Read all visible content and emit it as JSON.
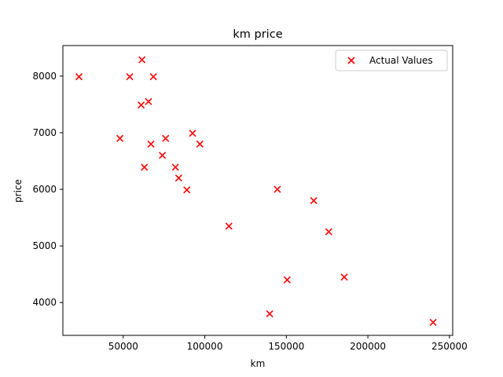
{
  "chart_data": {
    "type": "scatter",
    "title": "km price",
    "xlabel": "km",
    "ylabel": "price",
    "xlim": [
      13000,
      252000
    ],
    "ylim": [
      3420,
      8540
    ],
    "xticks": [
      50000,
      100000,
      150000,
      200000,
      250000
    ],
    "yticks": [
      4000,
      5000,
      6000,
      7000,
      8000
    ],
    "marker": "x",
    "color": "#ff0000",
    "grid": false,
    "legend_position": "top-right",
    "series": [
      {
        "name": "Actual Values",
        "points": [
          {
            "x": 240000,
            "y": 3650
          },
          {
            "x": 139800,
            "y": 3800
          },
          {
            "x": 150500,
            "y": 4400
          },
          {
            "x": 185500,
            "y": 4450
          },
          {
            "x": 176000,
            "y": 5250
          },
          {
            "x": 114800,
            "y": 5350
          },
          {
            "x": 166800,
            "y": 5800
          },
          {
            "x": 144500,
            "y": 6000
          },
          {
            "x": 89000,
            "y": 5990
          },
          {
            "x": 84000,
            "y": 6200
          },
          {
            "x": 82000,
            "y": 6390
          },
          {
            "x": 63000,
            "y": 6390
          },
          {
            "x": 74000,
            "y": 6600
          },
          {
            "x": 67000,
            "y": 6800
          },
          {
            "x": 97000,
            "y": 6800
          },
          {
            "x": 48000,
            "y": 6900
          },
          {
            "x": 76000,
            "y": 6900
          },
          {
            "x": 92500,
            "y": 6990
          },
          {
            "x": 61000,
            "y": 7490
          },
          {
            "x": 65500,
            "y": 7550
          },
          {
            "x": 22900,
            "y": 7990
          },
          {
            "x": 54000,
            "y": 7990
          },
          {
            "x": 68500,
            "y": 7990
          },
          {
            "x": 61500,
            "y": 8290
          }
        ]
      }
    ]
  }
}
